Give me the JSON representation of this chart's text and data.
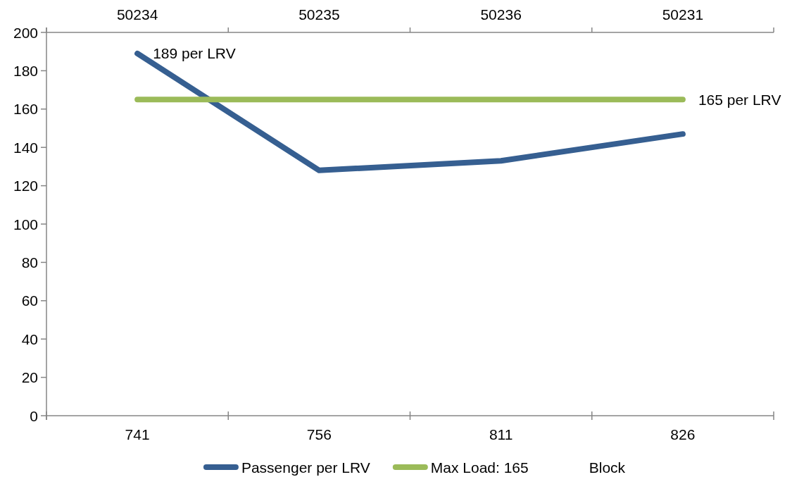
{
  "chart_data": {
    "type": "line",
    "categories": [
      "741",
      "756",
      "811",
      "826"
    ],
    "ylim": [
      0,
      200
    ],
    "yticks": [
      0,
      20,
      40,
      60,
      80,
      100,
      120,
      140,
      160,
      180,
      200
    ],
    "legend": "bottom",
    "series": [
      {
        "name": "Passenger per LRV",
        "color": "#365f91",
        "values": [
          189,
          128,
          133,
          147
        ]
      },
      {
        "name": "Max Load: 165",
        "color": "#9bbb59",
        "values": [
          165,
          165,
          165,
          165
        ]
      },
      {
        "name": "Block",
        "values": [
          null,
          null,
          null,
          null
        ]
      }
    ],
    "annotations": [
      "50234",
      "50235",
      "50236",
      "50231",
      {
        "text": "189 per LRV",
        "x": "741",
        "y": 189
      },
      {
        "text": "165 per LRV",
        "x": "826",
        "y": 165
      }
    ]
  }
}
